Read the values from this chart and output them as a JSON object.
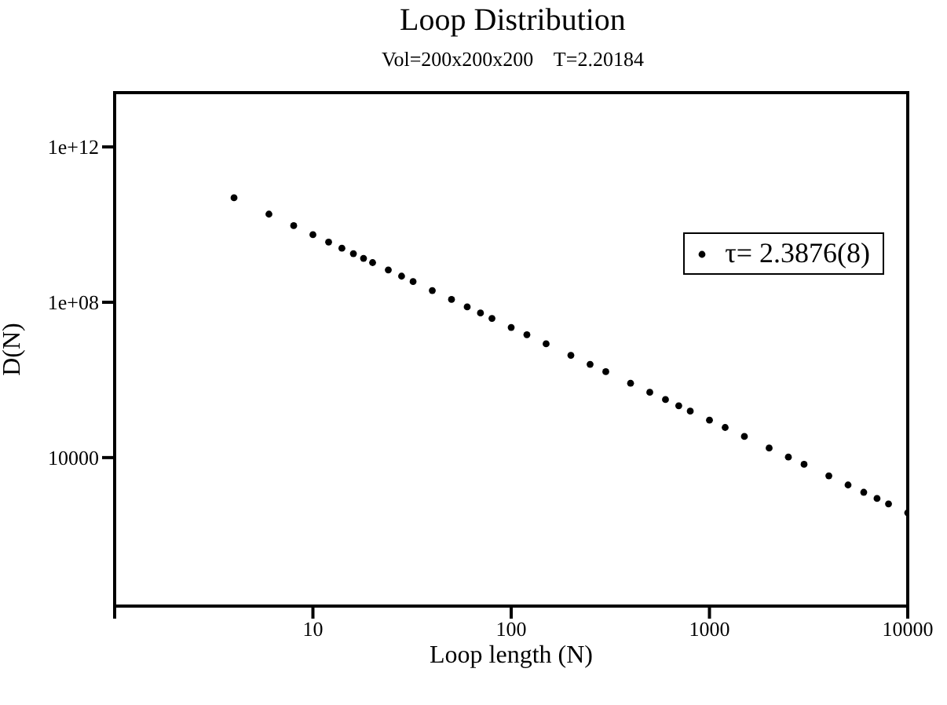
{
  "chart_data": {
    "type": "scatter",
    "title": "Loop Distribution",
    "subtitle": "Vol=200x200x200    T=2.20184",
    "xlabel": "Loop length (N)",
    "ylabel": "D(N)",
    "log": "xy",
    "xlim": [
      1,
      10000
    ],
    "xticks": [
      {
        "value": 1,
        "label": null
      },
      10,
      100,
      1000,
      10000
    ],
    "ylim": [
      1.5,
      25000000000000
    ],
    "yticks": [
      10000,
      {
        "value": 100000000,
        "label": "1e+08"
      },
      {
        "value": 1000000000000,
        "label": "1e+12"
      }
    ],
    "legend": "top right",
    "marker": "circle",
    "series": [
      {
        "name": "τ= 2.3876(8)",
        "color": "#000000",
        "x": [
          4,
          6,
          8,
          10,
          12,
          14,
          16,
          18,
          20,
          24,
          28,
          32,
          40,
          50,
          60,
          70,
          80,
          100,
          120,
          150,
          200,
          250,
          300,
          400,
          500,
          600,
          700,
          800,
          1000,
          1200,
          1500,
          2000,
          2500,
          3000,
          4000,
          5000,
          6000,
          7000,
          8000,
          10000
        ],
        "values": [
          49000000000,
          18600000000,
          9400000000,
          5500000000,
          3550000000,
          2460000000,
          1790000000,
          1350000000,
          1050000000,
          680000000,
          470000000,
          340000000,
          200000000,
          118000000,
          76000000,
          53000000,
          38300000,
          22500000,
          14600000,
          8500000,
          4300000,
          2520000,
          1630000,
          820000,
          480000,
          312000,
          216000,
          157000,
          92000,
          59600,
          35000,
          17600,
          10300,
          6700,
          3400,
          1970,
          1280,
          885,
          643,
          378
        ]
      }
    ]
  }
}
